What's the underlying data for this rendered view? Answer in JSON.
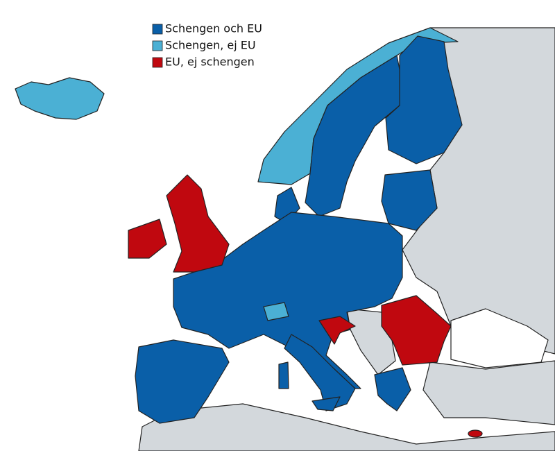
{
  "legend": {
    "items": [
      {
        "label": "Schengen och EU",
        "color": "#0a5fa8"
      },
      {
        "label": "Schengen, ej EU",
        "color": "#4bb0d4"
      },
      {
        "label": "EU, ej schengen",
        "color": "#c0080f"
      }
    ]
  }
}
